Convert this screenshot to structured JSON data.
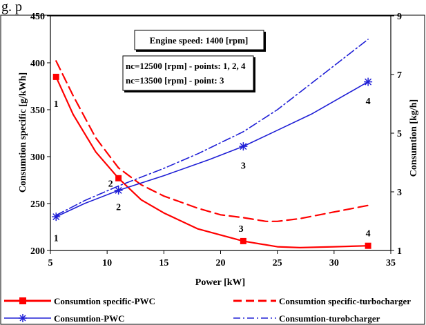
{
  "chart_data": {
    "type": "line",
    "top_caption": "g.                                      p",
    "annotations": [
      "Engine speed: 1400 [rpm]",
      "nc=12500 [rpm] - points: 1, 2, 4",
      "nc=13500 [rpm] - point: 3"
    ],
    "xlabel": "Power [kW]",
    "ylabel_left": "Consumtion specific [g/kWh]",
    "ylabel_right": "Consumtion [kg/h]",
    "xlim": [
      5,
      35
    ],
    "ylim_left": [
      200,
      450
    ],
    "ylim_right": [
      1,
      9
    ],
    "x_ticks": [
      "5",
      "10",
      "15",
      "20",
      "25",
      "30",
      "35"
    ],
    "y_left_ticks": [
      "200",
      "250",
      "300",
      "350",
      "400",
      "450"
    ],
    "y_right_ticks": [
      "1",
      "3",
      "5",
      "7",
      "9"
    ],
    "colors": {
      "red": "#ff0000",
      "blue": "#1f1fd6"
    },
    "series": [
      {
        "name": "Consumtion specific-PWC",
        "axis": "left",
        "style": "solid",
        "color": "#ff0000",
        "marker": "square",
        "x": [
          5.5,
          11,
          22,
          33
        ],
        "values": [
          385,
          277,
          210,
          205
        ],
        "curve_x": [
          5.5,
          7,
          9,
          11,
          13,
          15,
          18,
          22,
          25,
          27,
          30,
          33
        ],
        "curve_y": [
          385,
          345,
          305,
          277,
          254,
          240,
          223,
          210,
          204,
          203,
          204,
          205
        ]
      },
      {
        "name": "Consumtion specific-turbocharger",
        "axis": "left",
        "style": "dashed",
        "color": "#ff0000",
        "marker": "none",
        "x": [
          5.5,
          11,
          22,
          33
        ],
        "values": [
          402,
          288,
          235,
          248
        ],
        "curve_x": [
          5.5,
          7,
          9,
          11,
          13,
          15,
          18,
          20,
          22,
          24,
          25,
          27,
          30,
          33
        ],
        "curve_y": [
          402,
          365,
          320,
          288,
          270,
          258,
          245,
          238,
          235,
          231,
          231,
          234,
          241,
          248
        ]
      },
      {
        "name": "Consumtion-PWC",
        "axis": "right",
        "style": "solid",
        "color": "#1f1fd6",
        "marker": "asterisk",
        "x": [
          5.5,
          11,
          22,
          33
        ],
        "values": [
          2.15,
          3.05,
          4.55,
          6.75
        ],
        "curve_x": [
          5.5,
          8,
          11,
          15,
          19,
          22,
          25,
          28,
          33
        ],
        "curve_y": [
          2.15,
          2.6,
          3.05,
          3.55,
          4.1,
          4.55,
          5.1,
          5.65,
          6.75
        ]
      },
      {
        "name": "Consumtion-turobcharger",
        "axis": "right",
        "style": "dashdot",
        "color": "#1f1fd6",
        "marker": "none",
        "x": [
          5.5,
          11,
          22,
          33
        ],
        "values": [
          2.2,
          3.2,
          5.05,
          8.2
        ],
        "curve_x": [
          5.5,
          8,
          11,
          15,
          18,
          22,
          25,
          28,
          30,
          33
        ],
        "curve_y": [
          2.2,
          2.7,
          3.2,
          3.8,
          4.3,
          5.05,
          5.8,
          6.7,
          7.3,
          8.2
        ]
      }
    ],
    "point_labels": [
      {
        "text": "1",
        "x": 5.5,
        "y_left": 353
      },
      {
        "text": "1",
        "x": 5.5,
        "y_left": 210
      },
      {
        "text": "2",
        "x": 10.3,
        "y_left": 268
      },
      {
        "text": "2",
        "x": 11,
        "y_left": 243
      },
      {
        "text": "3",
        "x": 22,
        "y_left": 287
      },
      {
        "text": "3",
        "x": 21.8,
        "y_left": 220
      },
      {
        "text": "4",
        "x": 33,
        "y_left": 356
      },
      {
        "text": "4",
        "x": 33,
        "y_left": 215
      }
    ],
    "legend_position": "bottom",
    "grid": false
  }
}
